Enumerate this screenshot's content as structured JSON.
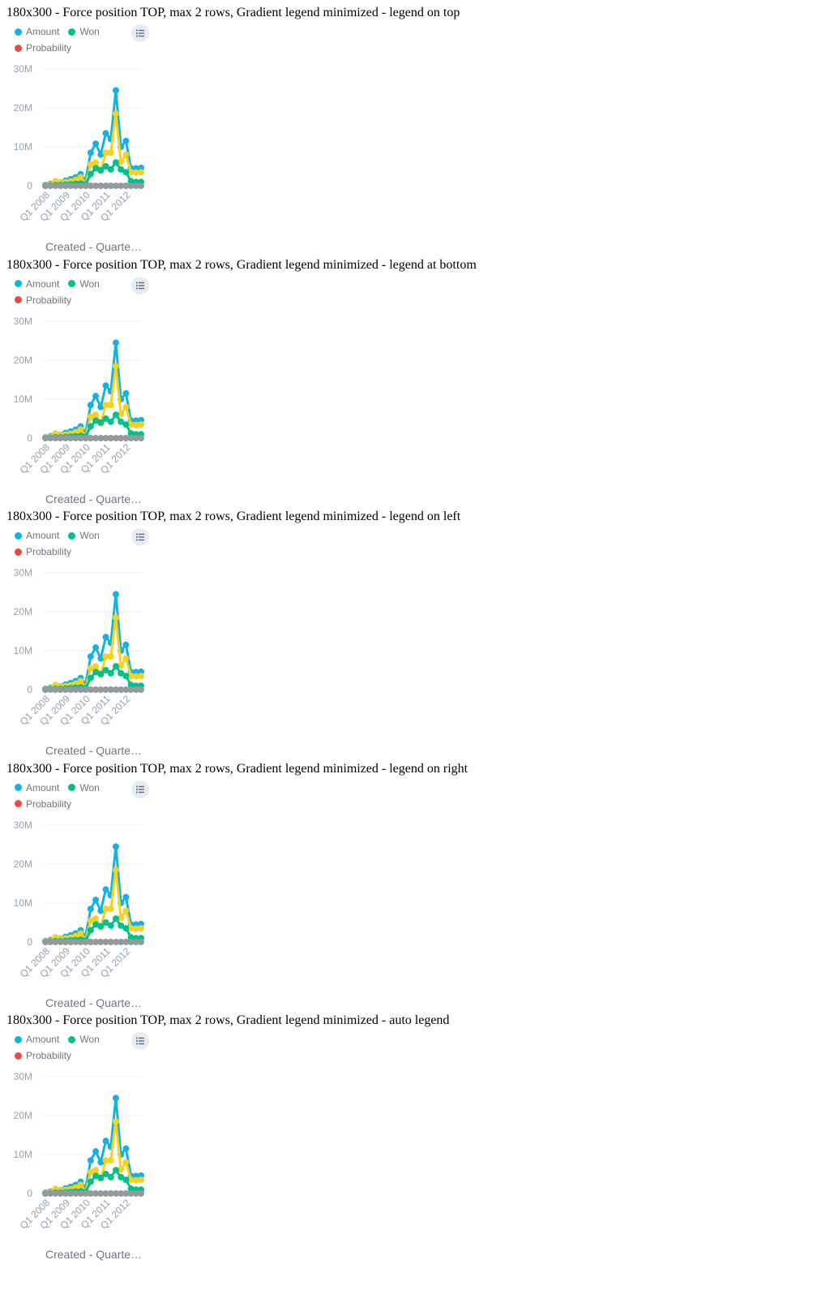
{
  "colors": {
    "amount": "#14b2e2",
    "won": "#00c18c",
    "probability": "#e84a42",
    "yellow": "#f6d21f",
    "gray": "#94999e",
    "axis_text": "#94a1b2",
    "grid": "#ebedf0"
  },
  "legend_button_icon": "legend-list-icon",
  "sections": [
    {
      "title": "180x300 - Force position TOP, max 2 rows, Gradient legend minimized - legend on top"
    },
    {
      "title": "180x300 - Force position TOP, max 2 rows, Gradient legend minimized - legend at bottom"
    },
    {
      "title": "180x300 - Force position TOP, max 2 rows, Gradient legend minimized - legend on left"
    },
    {
      "title": "180x300 - Force position TOP, max 2 rows, Gradient legend minimized - legend on right"
    },
    {
      "title": "180x300 - Force position TOP, max 2 rows, Gradient legend minimized - auto legend"
    }
  ],
  "chart_data": {
    "type": "line",
    "legend": [
      "Amount",
      "Won",
      "Probability"
    ],
    "legend_placement": "top",
    "xlabel": "Created - Quarte…",
    "ylabel": "",
    "ylim": [
      0,
      30000000
    ],
    "yticks": [
      {
        "value": 0,
        "label": "0"
      },
      {
        "value": 10000000,
        "label": "10M"
      },
      {
        "value": 20000000,
        "label": "20M"
      },
      {
        "value": 30000000,
        "label": "30M"
      }
    ],
    "grid": true,
    "x": [
      "Q1 2008",
      "Q2 2008",
      "Q3 2008",
      "Q4 2008",
      "Q1 2009",
      "Q2 2009",
      "Q3 2009",
      "Q4 2009",
      "Q1 2010",
      "Q2 2010",
      "Q3 2010",
      "Q4 2010",
      "Q1 2011",
      "Q2 2011",
      "Q3 2011",
      "Q4 2011",
      "Q1 2012",
      "Q2 2012",
      "Q3 2012",
      "Q4 2012"
    ],
    "xtick_labels": [
      "Q1 2008",
      "Q1 2009",
      "Q1 2010",
      "Q1 2011",
      "Q1 2012"
    ],
    "xtick_indices": [
      0,
      4,
      8,
      12,
      16
    ],
    "series": [
      {
        "name": "Amount",
        "color_key": "amount",
        "values": [
          0.2,
          0.5,
          0.9,
          0.8,
          1.3,
          1.7,
          2.2,
          3.0,
          1.5,
          8.5,
          10.8,
          8.0,
          13.5,
          12.0,
          24.5,
          10.0,
          11.5,
          4.5,
          4.5,
          4.6
        ]
      },
      {
        "color_key": "yellow",
        "values": [
          0.1,
          0.3,
          1.2,
          0.7,
          0.9,
          1.1,
          1.5,
          2.2,
          0.6,
          5.5,
          6.0,
          3.8,
          8.5,
          8.5,
          18.5,
          6.2,
          8.0,
          3.5,
          3.4,
          3.5
        ]
      },
      {
        "name": "Won",
        "color_key": "won",
        "values": [
          0.0,
          0.1,
          0.2,
          0.2,
          0.3,
          0.4,
          0.5,
          0.6,
          0.4,
          3.0,
          4.5,
          4.0,
          5.0,
          4.2,
          6.0,
          4.2,
          3.5,
          1.2,
          1.0,
          1.0
        ]
      },
      {
        "color_key": "gray",
        "values": [
          0.0,
          0.0,
          0.0,
          0.0,
          0.0,
          0.0,
          0.0,
          0.0,
          0.0,
          0.0,
          0.0,
          0.0,
          0.0,
          0.0,
          0.0,
          0.0,
          0.0,
          0.0,
          0.0,
          0.0
        ]
      }
    ],
    "value_unit": "M"
  }
}
